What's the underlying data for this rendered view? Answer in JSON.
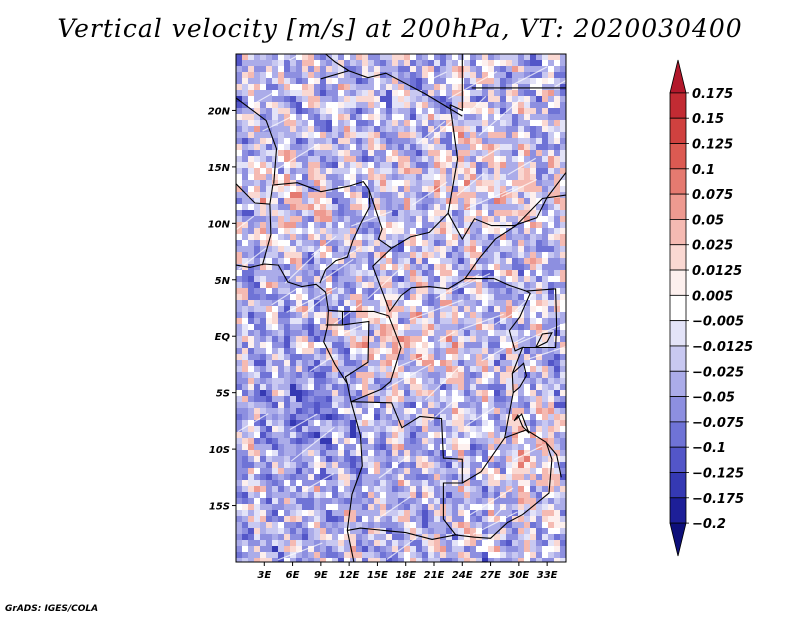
{
  "chart_data": {
    "type": "heatmap",
    "title": "Vertical velocity [m/s] at 200hPa, VT: 2020030400",
    "x_axis": {
      "range": [
        0,
        35
      ],
      "ticks": [
        3,
        6,
        9,
        12,
        15,
        18,
        21,
        24,
        27,
        30,
        33
      ],
      "tick_labels": [
        "3E",
        "6E",
        "9E",
        "12E",
        "15E",
        "18E",
        "21E",
        "24E",
        "27E",
        "30E",
        "33E"
      ]
    },
    "y_axis": {
      "range": [
        -20,
        25
      ],
      "ticks": [
        20,
        15,
        10,
        5,
        0,
        -5,
        -10,
        -15
      ],
      "tick_labels": [
        "20N",
        "15N",
        "10N",
        "5N",
        "EQ",
        "5S",
        "10S",
        "15S"
      ]
    },
    "colorbar": {
      "levels": [
        0.175,
        0.15,
        0.125,
        0.1,
        0.075,
        0.05,
        0.025,
        0.0125,
        0.005,
        -0.005,
        -0.0125,
        -0.025,
        -0.05,
        -0.075,
        -0.1,
        -0.125,
        -0.175,
        -0.2
      ],
      "labels": [
        "0.175",
        "0.15",
        "0.125",
        "0.1",
        "0.075",
        "0.05",
        "0.025",
        "0.0125",
        "0.005",
        "−0.005",
        "−0.0125",
        "−0.025",
        "−0.05",
        "−0.075",
        "−0.1",
        "−0.125",
        "−0.175",
        "−0.2"
      ],
      "colors": [
        "#b2182b",
        "#c22b33",
        "#d0413f",
        "#dc5a52",
        "#e57a70",
        "#ee9a90",
        "#f5bab2",
        "#fad8d2",
        "#fdf0ee",
        "#ffffff",
        "#e3e3f8",
        "#c8c8f1",
        "#abace9",
        "#8d8fe0",
        "#6f73d6",
        "#5356c8",
        "#3539b3",
        "#1d1f98",
        "#0d0f7a"
      ]
    }
  },
  "credit": "GrADS: IGES/COLA"
}
